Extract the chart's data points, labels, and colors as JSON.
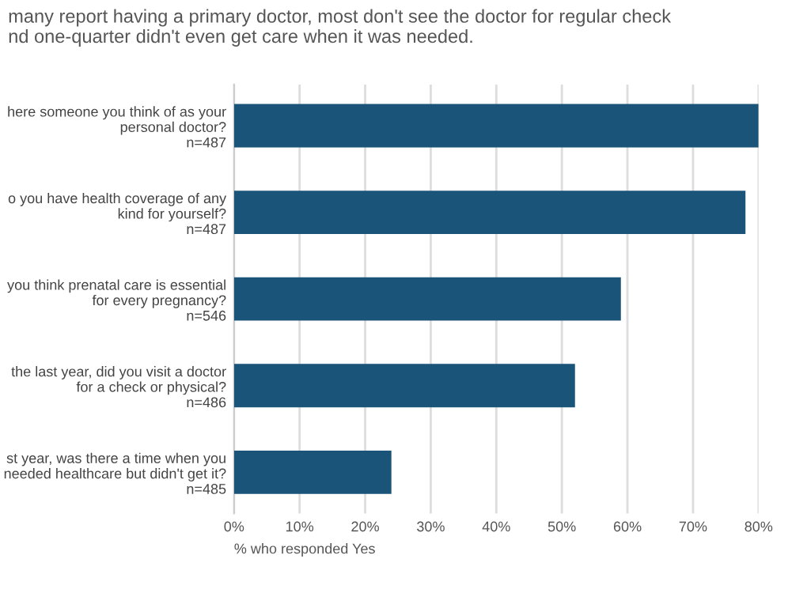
{
  "chart_data": {
    "type": "bar",
    "orientation": "horizontal",
    "title": "many report having a primary doctor, most don't see the doctor for regular check\nnd one-quarter didn't even get care when it was needed.",
    "categories": [
      "here someone you think of as your\npersonal doctor?\nn=487",
      "o you have health coverage of any\nkind for yourself?\nn=487",
      "you think prenatal care is essential\nfor every pregnancy?\nn=546",
      "the last year, did you visit a doctor\nfor a check or physical?\nn=486",
      "st year, was there a time when you\nneeded healthcare but didn't get it?\nn=485"
    ],
    "values": [
      80,
      78,
      59,
      52,
      24
    ],
    "color": "#1b5479",
    "xlabel": "% who responded Yes",
    "xlim": [
      0,
      80
    ],
    "xticks": [
      {
        "value": 0,
        "label": "0%"
      },
      {
        "value": 10,
        "label": "10%"
      },
      {
        "value": 20,
        "label": "20%"
      },
      {
        "value": 30,
        "label": "30%"
      },
      {
        "value": 40,
        "label": "40%"
      },
      {
        "value": 50,
        "label": "50%"
      },
      {
        "value": 60,
        "label": "60%"
      },
      {
        "value": 70,
        "label": "70%"
      },
      {
        "value": 80,
        "label": "80%"
      }
    ],
    "grid": "x"
  }
}
